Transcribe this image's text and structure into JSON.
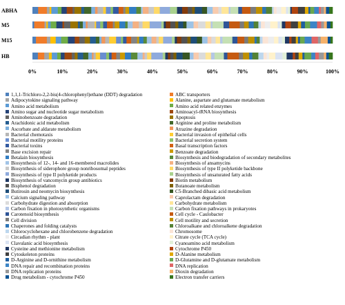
{
  "chart_data": {
    "type": "bar",
    "orientation": "horizontal",
    "stacked": true,
    "percent": true,
    "categories": [
      "ABHA",
      "M5",
      "M15",
      "HB"
    ],
    "x_ticks": [
      "0%",
      "10%",
      "20%",
      "30%",
      "40%",
      "50%",
      "60%",
      "70%",
      "80%",
      "90%",
      "100%"
    ],
    "xlim": [
      0,
      100
    ],
    "legend_position": "bottom",
    "legend": [
      {
        "name": "1,1,1-Trichloro-2,2-bis(4-chlorophenyl)ethane (DDT) degradation",
        "color": "#4f81bd"
      },
      {
        "name": "ABC transporters",
        "color": "#f07c2a"
      },
      {
        "name": "Adipocytokine signaling pathway",
        "color": "#a5a5a5"
      },
      {
        "name": "Alanine, aspartate and glutamate metabolism",
        "color": "#ffc000"
      },
      {
        "name": "Amino acid metabolism",
        "color": "#5b9bd5"
      },
      {
        "name": "Amino acid related enzymes",
        "color": "#70ad47"
      },
      {
        "name": "Amino sugar and nucleotide sugar metabolism",
        "color": "#264478"
      },
      {
        "name": "Aminoacyl-tRNA biosynthesis",
        "color": "#9e480e"
      },
      {
        "name": "Aminobenzoate degradation",
        "color": "#636363"
      },
      {
        "name": "Apoptosis",
        "color": "#997300"
      },
      {
        "name": "Arachidonic acid metabolism",
        "color": "#255e91"
      },
      {
        "name": "Arginine and proline metabolism",
        "color": "#43682b"
      },
      {
        "name": "Ascorbate and aldarate metabolism",
        "color": "#7cafdd"
      },
      {
        "name": "Atrazine degradation",
        "color": "#f1975a"
      },
      {
        "name": "Bacterial chemotaxis",
        "color": "#b7b7b7"
      },
      {
        "name": "Bacterial invasion of epithelial cells",
        "color": "#ffcd33"
      },
      {
        "name": "Bacterial motility proteins",
        "color": "#698ed0"
      },
      {
        "name": "Bacterial secretion system",
        "color": "#8cc168"
      },
      {
        "name": "Bacterial toxins",
        "color": "#335aa1"
      },
      {
        "name": "Basal transcription factors",
        "color": "#d26012"
      },
      {
        "name": "Base excision repair",
        "color": "#848484"
      },
      {
        "name": "Benzoate degradation",
        "color": "#cc9a00"
      },
      {
        "name": "Betalain biosynthesis",
        "color": "#327dc2"
      },
      {
        "name": "Biosynthesis and biodegradation of secondary metabolites",
        "color": "#5a8a39"
      },
      {
        "name": "Biosynthesis of 12-, 14- and 16-membered macrolides",
        "color": "#a2c4e6"
      },
      {
        "name": "Biosynthesis of ansamycins",
        "color": "#f4b183"
      },
      {
        "name": "Biosynthesis of siderophore group nonribosomal peptides",
        "color": "#c9c9c9"
      },
      {
        "name": "Biosynthesis of type II polyketide backbone",
        "color": "#ffd966"
      },
      {
        "name": "Biosynthesis of type II polyketide products",
        "color": "#8faadc"
      },
      {
        "name": "Biosynthesis of unsaturated fatty acids",
        "color": "#a9d18e"
      },
      {
        "name": "Biosynthesis of vancomycin group antibiotics",
        "color": "#1f3864"
      },
      {
        "name": "Biotin metabolism",
        "color": "#843c0c"
      },
      {
        "name": "Bisphenol degradation",
        "color": "#525252"
      },
      {
        "name": "Butanoate metabolism",
        "color": "#7f6000"
      },
      {
        "name": "Butirosin and neomycin biosynthesis",
        "color": "#1e4e79"
      },
      {
        "name": "C5-Branched dibasic acid metabolism",
        "color": "#375623"
      },
      {
        "name": "Calcium signaling pathway",
        "color": "#9dc3e6"
      },
      {
        "name": "Caprolactam degradation",
        "color": "#f8cbad"
      },
      {
        "name": "Carbohydrate digestion and absorption",
        "color": "#dbdbdb"
      },
      {
        "name": "Carbohydrate metabolism",
        "color": "#ffe699"
      },
      {
        "name": "Carbon fixation in photosynthetic organisms",
        "color": "#b4c7e7"
      },
      {
        "name": "Carbon fixation pathways in prokaryotes",
        "color": "#c5e0b4"
      },
      {
        "name": "Carotenoid biosynthesis",
        "color": "#2f5597"
      },
      {
        "name": "Cell cycle - Caulobacter",
        "color": "#c55a11"
      },
      {
        "name": "Cell division",
        "color": "#7b7b7b"
      },
      {
        "name": "Cell motility and secretion",
        "color": "#bf9000"
      },
      {
        "name": "Chaperones and folding catalysts",
        "color": "#2e75b6"
      },
      {
        "name": "Chloroalkane and chloroalkene degradation",
        "color": "#548235"
      },
      {
        "name": "Chlorocyclohexane and chlorobenzene degradation",
        "color": "#bdd7ee"
      },
      {
        "name": "Chromosome",
        "color": "#fbe5d6"
      },
      {
        "name": "Circadian rhythm - plant",
        "color": "#ededed"
      },
      {
        "name": "Citrate cycle (TCA cycle)",
        "color": "#fff2cc"
      },
      {
        "name": "Clavulanic acid biosynthesis",
        "color": "#dae3f3"
      },
      {
        "name": "Cyanoamino acid metabolism",
        "color": "#e2f0d9"
      },
      {
        "name": "Cysteine and methionine metabolism",
        "color": "#203864"
      },
      {
        "name": "Cytochrome P450",
        "color": "#b04510"
      },
      {
        "name": "Cytoskeleton proteins",
        "color": "#404040"
      },
      {
        "name": "D-Alanine metabolism",
        "color": "#e0a800"
      },
      {
        "name": "D-Arginine and D-ornithine metabolism",
        "color": "#1f5fa0"
      },
      {
        "name": "D-Glutamine and D-glutamate metabolism",
        "color": "#6aa84f"
      },
      {
        "name": "DNA repair and recombination proteins",
        "color": "#3d85c6"
      },
      {
        "name": "DNA replication",
        "color": "#e06666"
      },
      {
        "name": "DNA replication proteins",
        "color": "#999999"
      },
      {
        "name": "Dioxin degradation",
        "color": "#f6b26b"
      },
      {
        "name": "Drug metabolism - cytochrome P450",
        "color": "#0b5394"
      },
      {
        "name": "Electron transfer carriers",
        "color": "#38761d"
      }
    ]
  }
}
